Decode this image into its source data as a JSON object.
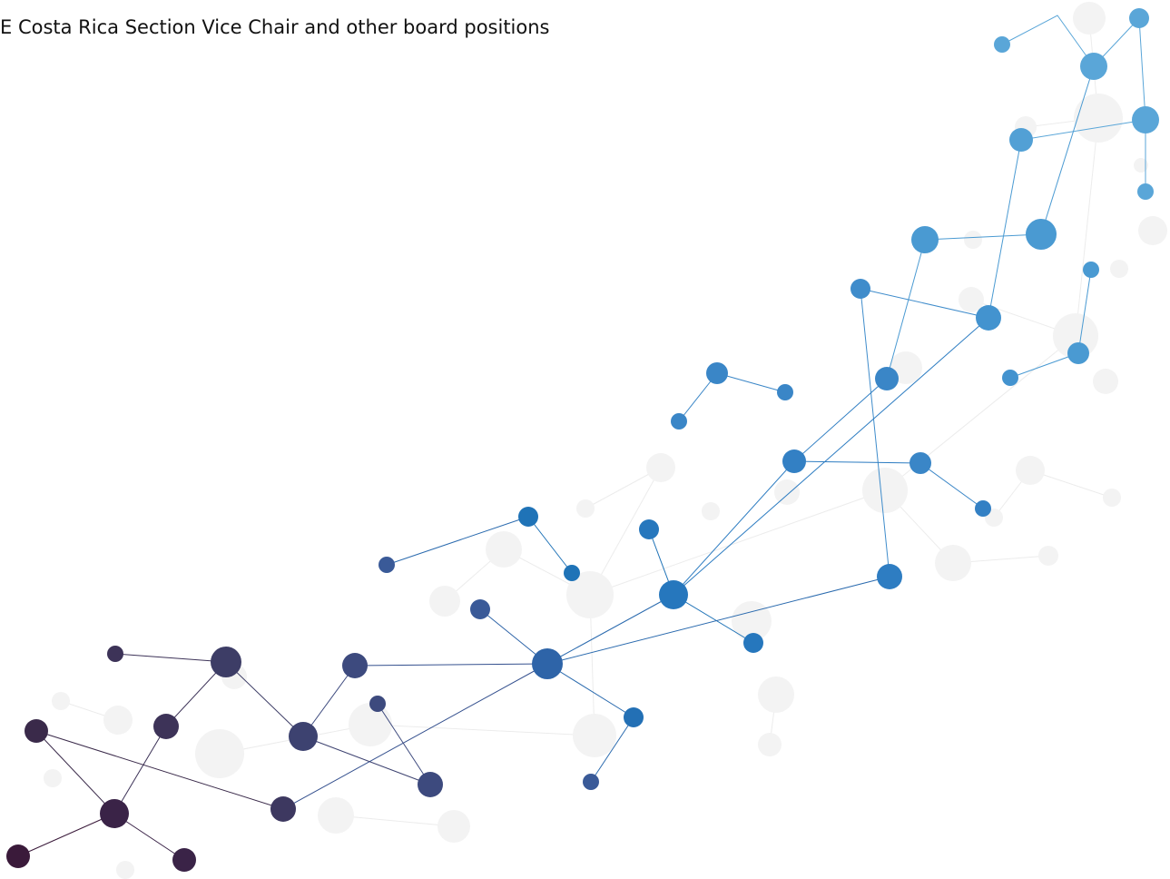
{
  "header": {
    "title": "E Costa Rica Section Vice Chair and other board positions"
  }
}
